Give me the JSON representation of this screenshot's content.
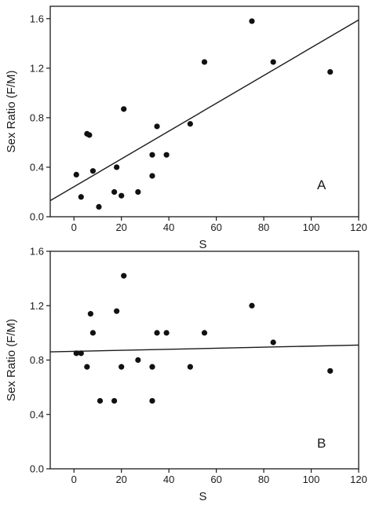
{
  "chart_data": [
    {
      "type": "scatter",
      "panel_label": "A",
      "xlabel": "S",
      "ylabel": "Sex Ratio (F/M)",
      "xlim": [
        -10,
        120
      ],
      "ylim": [
        0.0,
        1.7
      ],
      "xticks": [
        0,
        20,
        40,
        60,
        80,
        100,
        120
      ],
      "yticks": [
        0.0,
        0.4,
        0.8,
        1.2,
        1.6
      ],
      "xtick_labels": [
        "0",
        "20",
        "40",
        "60",
        "80",
        "100",
        "120"
      ],
      "ytick_labels": [
        "0.0",
        "0.4",
        "0.8",
        "1.2",
        "1.6"
      ],
      "grid": false,
      "points": [
        {
          "x": 1,
          "y": 0.34
        },
        {
          "x": 3,
          "y": 0.16
        },
        {
          "x": 5.5,
          "y": 0.67
        },
        {
          "x": 6.5,
          "y": 0.66
        },
        {
          "x": 8,
          "y": 0.37
        },
        {
          "x": 10.5,
          "y": 0.08
        },
        {
          "x": 17,
          "y": 0.2
        },
        {
          "x": 18,
          "y": 0.4
        },
        {
          "x": 20,
          "y": 0.17
        },
        {
          "x": 21,
          "y": 0.87
        },
        {
          "x": 27,
          "y": 0.2
        },
        {
          "x": 33,
          "y": 0.33
        },
        {
          "x": 33,
          "y": 0.5
        },
        {
          "x": 35,
          "y": 0.73
        },
        {
          "x": 39,
          "y": 0.5
        },
        {
          "x": 49,
          "y": 0.75
        },
        {
          "x": 55,
          "y": 1.25
        },
        {
          "x": 75,
          "y": 1.58
        },
        {
          "x": 84,
          "y": 1.25
        },
        {
          "x": 108,
          "y": 1.17
        }
      ],
      "fit_line": {
        "x": [
          -10,
          120
        ],
        "y": [
          0.13,
          1.59
        ]
      }
    },
    {
      "type": "scatter",
      "panel_label": "B",
      "xlabel": "S",
      "ylabel": "Sex Ratio (F/M)",
      "xlim": [
        -10,
        120
      ],
      "ylim": [
        0.0,
        1.6
      ],
      "xticks": [
        0,
        20,
        40,
        60,
        80,
        100,
        120
      ],
      "yticks": [
        0.0,
        0.4,
        0.8,
        1.2,
        1.6
      ],
      "xtick_labels": [
        "0",
        "20",
        "40",
        "60",
        "80",
        "100",
        "120"
      ],
      "ytick_labels": [
        "0.0",
        "0.4",
        "0.8",
        "1.2",
        "1.6"
      ],
      "grid": false,
      "points": [
        {
          "x": 1,
          "y": 0.85
        },
        {
          "x": 3,
          "y": 0.85
        },
        {
          "x": 5.5,
          "y": 0.75
        },
        {
          "x": 7,
          "y": 1.14
        },
        {
          "x": 8,
          "y": 1.0
        },
        {
          "x": 11,
          "y": 0.5
        },
        {
          "x": 17,
          "y": 0.5
        },
        {
          "x": 18,
          "y": 1.16
        },
        {
          "x": 20,
          "y": 0.75
        },
        {
          "x": 21,
          "y": 1.42
        },
        {
          "x": 27,
          "y": 0.8
        },
        {
          "x": 33,
          "y": 0.5
        },
        {
          "x": 33,
          "y": 0.75
        },
        {
          "x": 35,
          "y": 1.0
        },
        {
          "x": 39,
          "y": 1.0
        },
        {
          "x": 49,
          "y": 0.75
        },
        {
          "x": 55,
          "y": 1.0
        },
        {
          "x": 75,
          "y": 1.2
        },
        {
          "x": 84,
          "y": 0.93
        },
        {
          "x": 108,
          "y": 0.72
        }
      ],
      "fit_line": {
        "x": [
          -10,
          120
        ],
        "y": [
          0.86,
          0.91
        ]
      }
    }
  ]
}
